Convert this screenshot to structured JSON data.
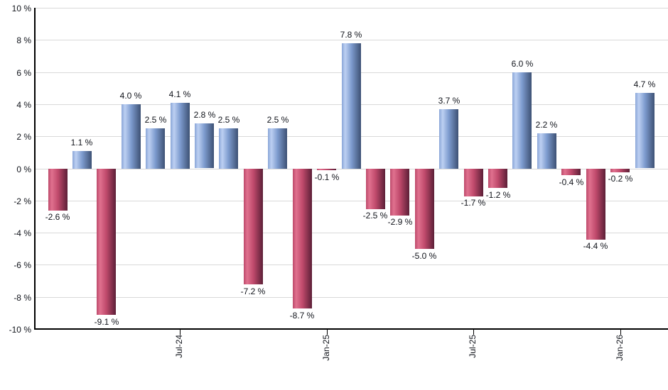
{
  "chart_data": {
    "type": "bar",
    "title": "",
    "xlabel": "",
    "ylabel": "",
    "ylim": [
      -10,
      10
    ],
    "grid": "horizontal",
    "legend": "none",
    "values": [
      -2.6,
      1.1,
      -9.1,
      4.0,
      2.5,
      4.1,
      2.8,
      2.5,
      -7.2,
      2.5,
      -8.7,
      -0.1,
      7.8,
      -2.5,
      -2.9,
      -5.0,
      3.7,
      -1.7,
      -1.2,
      6.0,
      2.2,
      -0.4,
      -4.4,
      -0.2,
      4.7
    ],
    "value_labels": [
      "-2.6 %",
      "1.1 %",
      "-9.1 %",
      "4.0 %",
      "2.5 %",
      "4.1 %",
      "2.8 %",
      "2.5 %",
      "-7.2 %",
      "2.5 %",
      "-8.7 %",
      "-0.1 %",
      "7.8 %",
      "-2.5 %",
      "-2.9 %",
      "-5.0 %",
      "3.7 %",
      "-1.7 %",
      "-1.2 %",
      "6.0 %",
      "2.2 %",
      "-0.4 %",
      "-4.4 %",
      "-0.2 %",
      "4.7 %"
    ],
    "x_ticks": [
      {
        "index": 5,
        "label": "Jul-24"
      },
      {
        "index": 11,
        "label": "Jan-25"
      },
      {
        "index": 17,
        "label": "Jul-25"
      },
      {
        "index": 23,
        "label": "Jan-26"
      }
    ],
    "y_ticks": [
      {
        "value": 10,
        "label": "10 %"
      },
      {
        "value": 8,
        "label": "8 %"
      },
      {
        "value": 6,
        "label": "6 %"
      },
      {
        "value": 4,
        "label": "4 %"
      },
      {
        "value": 2,
        "label": "2 %"
      },
      {
        "value": 0,
        "label": "0 %"
      },
      {
        "value": -2,
        "label": "-2 %"
      },
      {
        "value": -4,
        "label": "-4 %"
      },
      {
        "value": -6,
        "label": "-6 %"
      },
      {
        "value": -8,
        "label": "-8 %"
      },
      {
        "value": -10,
        "label": "-10 %"
      }
    ],
    "colors": {
      "positive_bar_mid": "#7e9ccf",
      "negative_bar_mid": "#c04a6c",
      "positive_gradient": [
        "#8aa6d8",
        "#bdd0f2",
        "#7e9ccf",
        "#3d5174"
      ],
      "negative_gradient": [
        "#bd4a6b",
        "#e0718f",
        "#c04a6c",
        "#5c1f37"
      ],
      "gridline": "#d9d9d9",
      "axis": "#000000",
      "label_text": "#10131a"
    }
  }
}
